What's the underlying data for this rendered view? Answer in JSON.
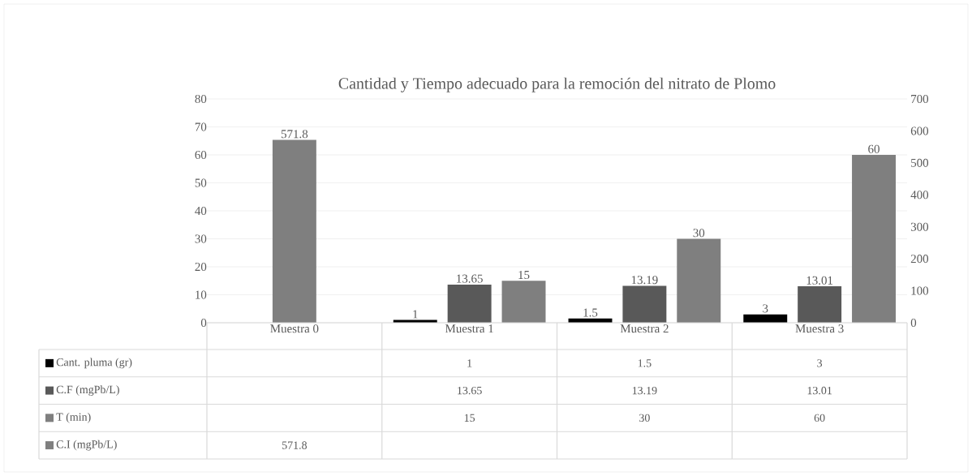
{
  "chart_data": {
    "type": "bar",
    "title": "Cantidad y Tiempo adecuado para la remoción del nitrato de Plomo",
    "categories": [
      "Muestra 0",
      "Muestra 1",
      "Muestra 2",
      "Muestra 3"
    ],
    "series": [
      {
        "name": "Cant. pluma (gr)",
        "color": "#000000",
        "values": [
          null,
          1,
          1.5,
          3
        ],
        "value_labels": [
          null,
          "1",
          "1.5",
          "3"
        ]
      },
      {
        "name": "C.F (mgPb/L)",
        "color": "#595959",
        "values": [
          null,
          13.65,
          13.19,
          13.01
        ],
        "value_labels": [
          null,
          "13.65",
          "13.19",
          "13.01"
        ]
      },
      {
        "name": "T (min)",
        "color": "#7f7f7f",
        "values": [
          null,
          15,
          30,
          60
        ],
        "value_labels": [
          null,
          "15",
          "30",
          "60"
        ]
      },
      {
        "name": "C.I (mgPb/L)",
        "color": "#7f7f7f",
        "values": [
          571.8,
          null,
          null,
          null
        ],
        "axis": "y2",
        "value_labels": [
          "571.8",
          null,
          null,
          null
        ]
      }
    ],
    "ylim": [
      0,
      80
    ],
    "yticks": [
      0,
      10,
      20,
      30,
      40,
      50,
      60,
      70,
      80
    ],
    "y2lim": [
      0,
      700
    ],
    "y2ticks": [
      0,
      100,
      200,
      300,
      400,
      500,
      600,
      700
    ],
    "grid": "y",
    "legend": "bottom"
  }
}
